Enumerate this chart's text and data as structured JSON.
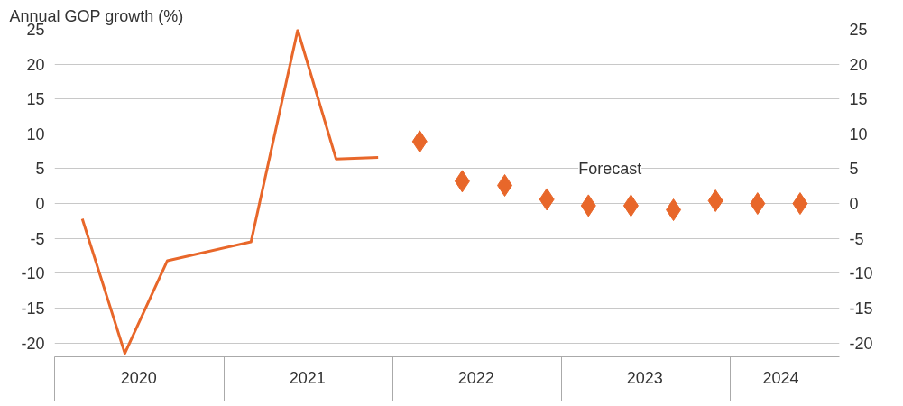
{
  "chart_data": {
    "type": "line",
    "ylabel": "Annual GOP growth (%)",
    "xlim": [
      "2020-01-01",
      "2024-08-25"
    ],
    "xticks": [
      {
        "value": "2020-07-01",
        "label": "2020"
      },
      {
        "value": "2021-07-01",
        "label": "2021"
      },
      {
        "value": "2022-07-01",
        "label": "2022"
      },
      {
        "value": "2023-07-01",
        "label": "2023"
      },
      {
        "value": "2024-04-20",
        "label": "2024"
      }
    ],
    "ylim": [
      -22,
      25
    ],
    "yticks": [
      -20,
      -15,
      -10,
      -5,
      0,
      5,
      10,
      15,
      20,
      25
    ],
    "y2lim": [
      -22,
      25
    ],
    "y2ticks": [
      -20,
      -15,
      -10,
      -5,
      0,
      5,
      10,
      15,
      20,
      25
    ],
    "grid": "y",
    "series": [
      {
        "color": "#e8672a",
        "marker": "none",
        "x": [
          "2020-03-01",
          "2020-06-01",
          "2020-09-01",
          "2021-03-01",
          "2021-06-10",
          "2021-09-01",
          "2021-12-01"
        ],
        "values": [
          -2.2,
          -21.5,
          -8.2,
          -5.5,
          24.9,
          6.4,
          6.6
        ]
      },
      {
        "type": "scatter",
        "name": "Forecast",
        "color": "#e8672a",
        "marker": "diamond",
        "x": [
          "2022-03-01",
          "2022-06-01",
          "2022-09-01",
          "2022-12-01",
          "2023-03-01",
          "2023-06-01",
          "2023-09-01",
          "2023-12-01",
          "2024-03-01",
          "2024-06-01"
        ],
        "values": [
          8.9,
          3.2,
          2.6,
          0.6,
          -0.3,
          -0.3,
          -0.9,
          0.4,
          0,
          0
        ]
      }
    ]
  }
}
